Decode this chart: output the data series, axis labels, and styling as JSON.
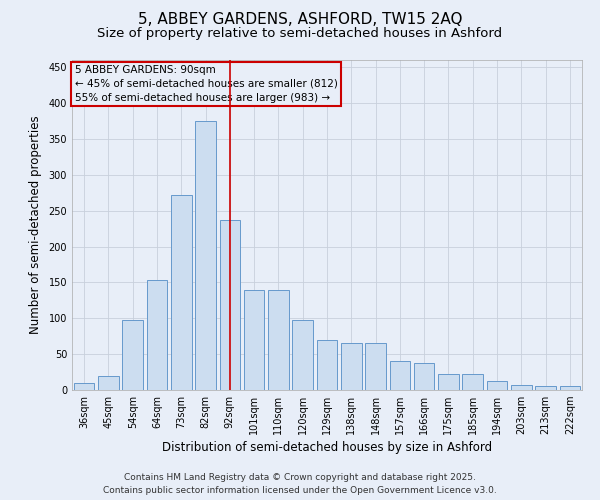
{
  "title": "5, ABBEY GARDENS, ASHFORD, TW15 2AQ",
  "subtitle": "Size of property relative to semi-detached houses in Ashford",
  "xlabel": "Distribution of semi-detached houses by size in Ashford",
  "ylabel": "Number of semi-detached properties",
  "categories": [
    "36sqm",
    "45sqm",
    "54sqm",
    "64sqm",
    "73sqm",
    "82sqm",
    "92sqm",
    "101sqm",
    "110sqm",
    "120sqm",
    "129sqm",
    "138sqm",
    "148sqm",
    "157sqm",
    "166sqm",
    "175sqm",
    "185sqm",
    "194sqm",
    "203sqm",
    "213sqm",
    "222sqm"
  ],
  "values": [
    10,
    20,
    97,
    153,
    272,
    375,
    237,
    139,
    139,
    97,
    70,
    65,
    65,
    40,
    37,
    22,
    22,
    12,
    7,
    5,
    5
  ],
  "bar_color": "#ccddf0",
  "bar_edge_color": "#6699cc",
  "marker_index": 6,
  "marker_color": "#cc0000",
  "annotation_title": "5 ABBEY GARDENS: 90sqm",
  "annotation_line1": "← 45% of semi-detached houses are smaller (812)",
  "annotation_line2": "55% of semi-detached houses are larger (983) →",
  "annotation_box_color": "#cc0000",
  "ylim": [
    0,
    460
  ],
  "yticks": [
    0,
    50,
    100,
    150,
    200,
    250,
    300,
    350,
    400,
    450
  ],
  "footer_line1": "Contains HM Land Registry data © Crown copyright and database right 2025.",
  "footer_line2": "Contains public sector information licensed under the Open Government Licence v3.0.",
  "background_color": "#e8eef8",
  "grid_color": "#c8d0dc",
  "title_fontsize": 11,
  "subtitle_fontsize": 9.5,
  "axis_label_fontsize": 8.5,
  "tick_fontsize": 7,
  "footer_fontsize": 6.5,
  "annotation_fontsize": 7.5
}
